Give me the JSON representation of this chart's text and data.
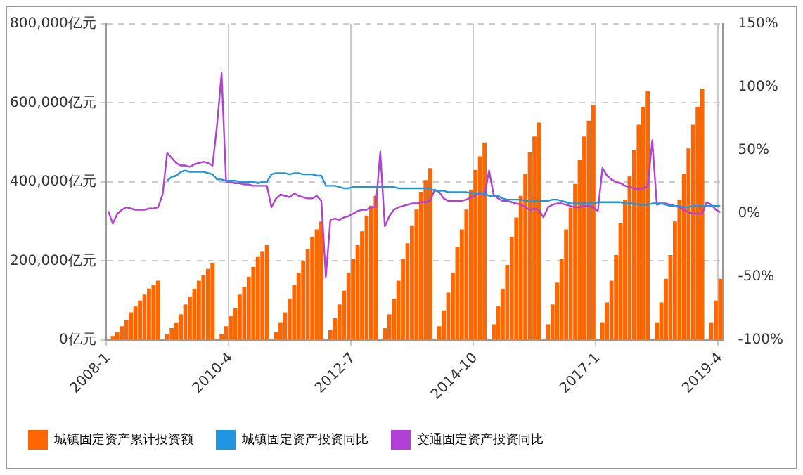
{
  "chart_data": {
    "type": "bar",
    "categories": [
      "2008-1",
      null,
      null,
      null,
      null,
      null,
      null,
      null,
      null,
      null,
      null,
      null,
      null,
      null,
      null,
      null,
      null,
      null,
      null,
      null,
      null,
      null,
      null,
      null,
      null,
      null,
      null,
      "2010-4",
      null,
      null,
      null,
      null,
      null,
      null,
      null,
      null,
      null,
      null,
      null,
      null,
      null,
      null,
      null,
      null,
      null,
      null,
      null,
      null,
      null,
      null,
      null,
      null,
      null,
      null,
      "2012-7",
      null,
      null,
      null,
      null,
      null,
      null,
      null,
      null,
      null,
      null,
      null,
      null,
      null,
      null,
      null,
      null,
      null,
      null,
      null,
      null,
      null,
      null,
      null,
      null,
      null,
      null,
      "2014-10",
      null,
      null,
      null,
      null,
      null,
      null,
      null,
      null,
      null,
      null,
      null,
      null,
      null,
      null,
      null,
      null,
      null,
      null,
      null,
      null,
      null,
      null,
      null,
      null,
      null,
      null,
      "2017-1",
      null,
      null,
      null,
      null,
      null,
      null,
      null,
      null,
      null,
      null,
      null,
      null,
      null,
      null,
      null,
      null,
      null,
      null,
      null,
      null,
      null,
      null,
      null,
      null,
      null,
      null,
      "2019-4"
    ],
    "series": [
      {
        "name": "城镇固定资产累计投资额",
        "color": "#ff6600",
        "values": [
          null,
          10000,
          20000,
          35000,
          50000,
          70000,
          85000,
          100000,
          115000,
          130000,
          140000,
          150000,
          null,
          15000,
          30000,
          45000,
          65000,
          90000,
          110000,
          130000,
          150000,
          165000,
          180000,
          195000,
          null,
          15000,
          35000,
          60000,
          80000,
          115000,
          135000,
          160000,
          185000,
          210000,
          225000,
          240000,
          null,
          20000,
          45000,
          70000,
          105000,
          140000,
          170000,
          200000,
          230000,
          260000,
          280000,
          300000,
          null,
          25000,
          55000,
          90000,
          125000,
          170000,
          205000,
          240000,
          275000,
          315000,
          340000,
          365000,
          null,
          30000,
          65000,
          105000,
          150000,
          205000,
          245000,
          290000,
          330000,
          375000,
          405000,
          435000,
          null,
          35000,
          75000,
          120000,
          170000,
          235000,
          280000,
          330000,
          380000,
          430000,
          465000,
          500000,
          null,
          40000,
          85000,
          130000,
          190000,
          260000,
          310000,
          365000,
          420000,
          475000,
          515000,
          550000,
          null,
          40000,
          90000,
          145000,
          205000,
          280000,
          335000,
          395000,
          455000,
          515000,
          555000,
          595000,
          null,
          45000,
          95000,
          150000,
          215000,
          295000,
          355000,
          415000,
          480000,
          545000,
          590000,
          630000,
          null,
          45000,
          95000,
          155000,
          215000,
          300000,
          355000,
          420000,
          485000,
          545000,
          590000,
          635000,
          null,
          45000,
          100000,
          155000
        ]
      },
      {
        "name": "城镇固定资产投资同比",
        "type": "line",
        "axis": "y2",
        "color": "#2196e0",
        "values": [
          null,
          null,
          null,
          null,
          null,
          null,
          null,
          null,
          null,
          null,
          null,
          null,
          null,
          26,
          29,
          30,
          33,
          34,
          33,
          33,
          33,
          33,
          32,
          31,
          27,
          27,
          26,
          26,
          26,
          25,
          25,
          25,
          25,
          24,
          25,
          25,
          31,
          32,
          32,
          32,
          31,
          32,
          32,
          31,
          31,
          31,
          30,
          30,
          22,
          22,
          22,
          21,
          20,
          20,
          21,
          21,
          21,
          21,
          21,
          21,
          21,
          21,
          21,
          21,
          20,
          20,
          20,
          20,
          20,
          20,
          20,
          20,
          18,
          18,
          18,
          17,
          17,
          17,
          17,
          17,
          16,
          16,
          16,
          16,
          14,
          14,
          14,
          12,
          11,
          11,
          11,
          11,
          10,
          10,
          10,
          10,
          10,
          10,
          11,
          11,
          10,
          9,
          8,
          8,
          8,
          8,
          8,
          8,
          9,
          9,
          9,
          9,
          9,
          9,
          8,
          8,
          8,
          7,
          7,
          7,
          8,
          8,
          8,
          7,
          6,
          6,
          6,
          5,
          5,
          6,
          6,
          6,
          6,
          6,
          6,
          6
        ]
      },
      {
        "name": "交通固定资产投资同比",
        "type": "line",
        "axis": "y2",
        "color": "#b23fd6",
        "values": [
          2,
          -8,
          0,
          3,
          5,
          4,
          3,
          3,
          3,
          4,
          4,
          5,
          15,
          48,
          44,
          40,
          38,
          38,
          37,
          39,
          40,
          41,
          40,
          38,
          70,
          111,
          25,
          25,
          24,
          24,
          23,
          23,
          22,
          22,
          22,
          22,
          5,
          12,
          15,
          14,
          13,
          16,
          14,
          13,
          12,
          12,
          14,
          10,
          -50,
          -5,
          -4,
          -5,
          -3,
          -2,
          0,
          2,
          3,
          3,
          5,
          5,
          49,
          -10,
          -2,
          3,
          5,
          6,
          7,
          8,
          8,
          9,
          9,
          10,
          19,
          17,
          12,
          10,
          10,
          10,
          10,
          11,
          13,
          14,
          17,
          14,
          34,
          15,
          12,
          10,
          10,
          9,
          8,
          7,
          5,
          3,
          4,
          3,
          -3,
          5,
          7,
          8,
          8,
          7,
          6,
          5,
          5,
          6,
          6,
          5,
          2,
          36,
          30,
          27,
          25,
          24,
          22,
          21,
          20,
          19,
          20,
          22,
          58,
          7,
          8,
          8,
          7,
          6,
          5,
          3,
          1,
          0,
          0,
          0,
          9,
          7,
          3,
          1
        ]
      }
    ],
    "ylim": [
      0,
      800000
    ],
    "yticks": [
      {
        "value": 0,
        "label": "0亿元"
      },
      {
        "value": 200000,
        "label": "200,000亿元"
      },
      {
        "value": 400000,
        "label": "400,000亿元"
      },
      {
        "value": 600000,
        "label": "600,000亿元"
      },
      {
        "value": 800000,
        "label": "800,000亿元"
      }
    ],
    "y2lim": [
      -100,
      150
    ],
    "y2ticks": [
      {
        "value": -100,
        "label": "-100%"
      },
      {
        "value": -50,
        "label": "-50%"
      },
      {
        "value": 0,
        "label": "0%"
      },
      {
        "value": 50,
        "label": "50%"
      },
      {
        "value": 100,
        "label": "100%"
      },
      {
        "value": 150,
        "label": "150%"
      }
    ],
    "grid": true,
    "legend": "bottom",
    "marker": "none"
  }
}
